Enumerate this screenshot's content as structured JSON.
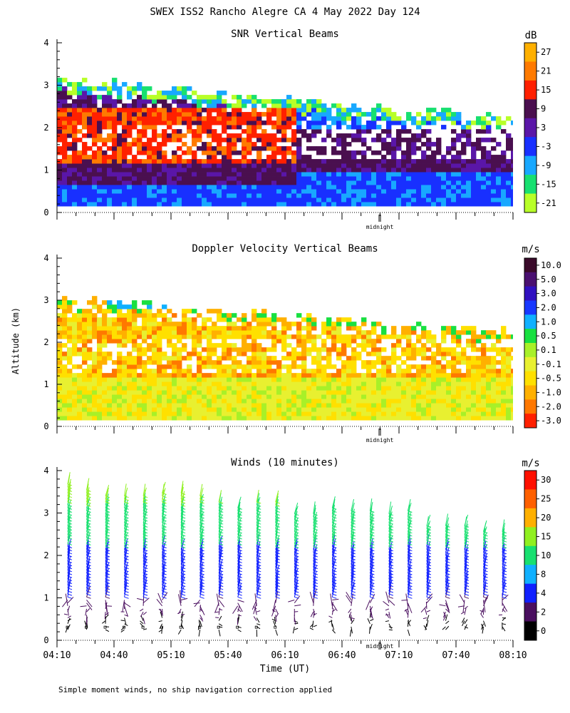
{
  "title": "SWEX ISS2 Rancho Alegre CA   4 May 2022 Day 124",
  "ylabel": "Altitude (km)",
  "xlabel": "Time (UT)",
  "footnote": "Simple moment winds, no ship navigation correction applied",
  "midnight_label": "midnight",
  "chart_data": [
    {
      "type": "heatmap",
      "title": "SNR Vertical Beams",
      "unit": "dB",
      "ylim": [
        0,
        4
      ],
      "yticks": [
        "0",
        "1",
        "2",
        "3",
        "4"
      ],
      "colorbar_labels": [
        "27",
        "21",
        "15",
        "9",
        "3",
        "-3",
        "-9",
        "-15",
        "-21"
      ],
      "colorbar_colors": [
        "#ffb000",
        "#ff7a00",
        "#ff2000",
        "#4a0f4f",
        "#5a16a8",
        "#1830ff",
        "#18a8ff",
        "#18e070",
        "#b8ff28"
      ],
      "layers": [
        {
          "alt_range": [
            0.15,
            0.7
          ],
          "value": "-3",
          "color": "#1830ff"
        },
        {
          "alt_range": [
            0.7,
            1.3
          ],
          "value": "9",
          "color": "#4a0f4f"
        },
        {
          "alt_range": [
            1.3,
            2.6
          ],
          "value": "15",
          "color": "#ff2000"
        },
        {
          "alt_range": [
            2.6,
            3.1
          ],
          "value": "-15",
          "color": "#18e070"
        }
      ]
    },
    {
      "type": "heatmap",
      "title": "Doppler Velocity Vertical Beams",
      "unit": "m/s",
      "ylim": [
        0,
        4
      ],
      "yticks": [
        "0",
        "1",
        "2",
        "3",
        "4"
      ],
      "colorbar_labels": [
        "10.0",
        "5.0",
        "3.0",
        "2.0",
        "1.0",
        "0.5",
        "0.1",
        "-0.1",
        "-0.5",
        "-1.0",
        "-2.0",
        "-3.0"
      ],
      "colorbar_colors": [
        "#3a0a2a",
        "#4a1070",
        "#3010c0",
        "#1838ff",
        "#10b0ff",
        "#18e040",
        "#a8f028",
        "#e8f030",
        "#ffe000",
        "#ffb000",
        "#ff7800",
        "#ff2000"
      ],
      "layers": [
        {
          "alt_range": [
            0.15,
            1.2
          ],
          "value": "-0.1",
          "color": "#e8f030"
        },
        {
          "alt_range": [
            1.2,
            3.0
          ],
          "value": "-0.5",
          "color": "#ffe000"
        },
        {
          "alt_range": [
            2.9,
            3.3
          ],
          "value": "1.0",
          "color": "#10b0ff"
        }
      ]
    },
    {
      "type": "scatter",
      "title": "Winds (10 minutes)",
      "unit": "m/s",
      "ylim": [
        0,
        4
      ],
      "yticks": [
        "0",
        "1",
        "2",
        "3",
        "4"
      ],
      "x_ticklabels": [
        "04:10",
        "04:40",
        "05:10",
        "05:40",
        "06:10",
        "06:40",
        "07:10",
        "07:40",
        "08:10"
      ],
      "colorbar_labels": [
        "30",
        "25",
        "20",
        "15",
        "10",
        "8",
        "4",
        "2",
        "0"
      ],
      "colorbar_colors": [
        "#ff1000",
        "#ff6000",
        "#ffb000",
        "#90f020",
        "#18e070",
        "#10b0ff",
        "#1020ff",
        "#4a0f5f",
        "#000000"
      ],
      "profiles_count": 24,
      "speed_by_altitude": [
        {
          "alt_range": [
            0.0,
            0.5
          ],
          "speed": "0-2",
          "color": "#000000"
        },
        {
          "alt_range": [
            0.5,
            1.0
          ],
          "speed": "2-4",
          "color": "#4a0f5f"
        },
        {
          "alt_range": [
            1.0,
            2.2
          ],
          "speed": "4-8",
          "color": "#1020ff"
        },
        {
          "alt_range": [
            2.2,
            3.2
          ],
          "speed": "10-15",
          "color": "#18e070"
        },
        {
          "alt_range": [
            3.2,
            4.0
          ],
          "speed": "15-20",
          "color": "#90f020"
        }
      ]
    }
  ]
}
